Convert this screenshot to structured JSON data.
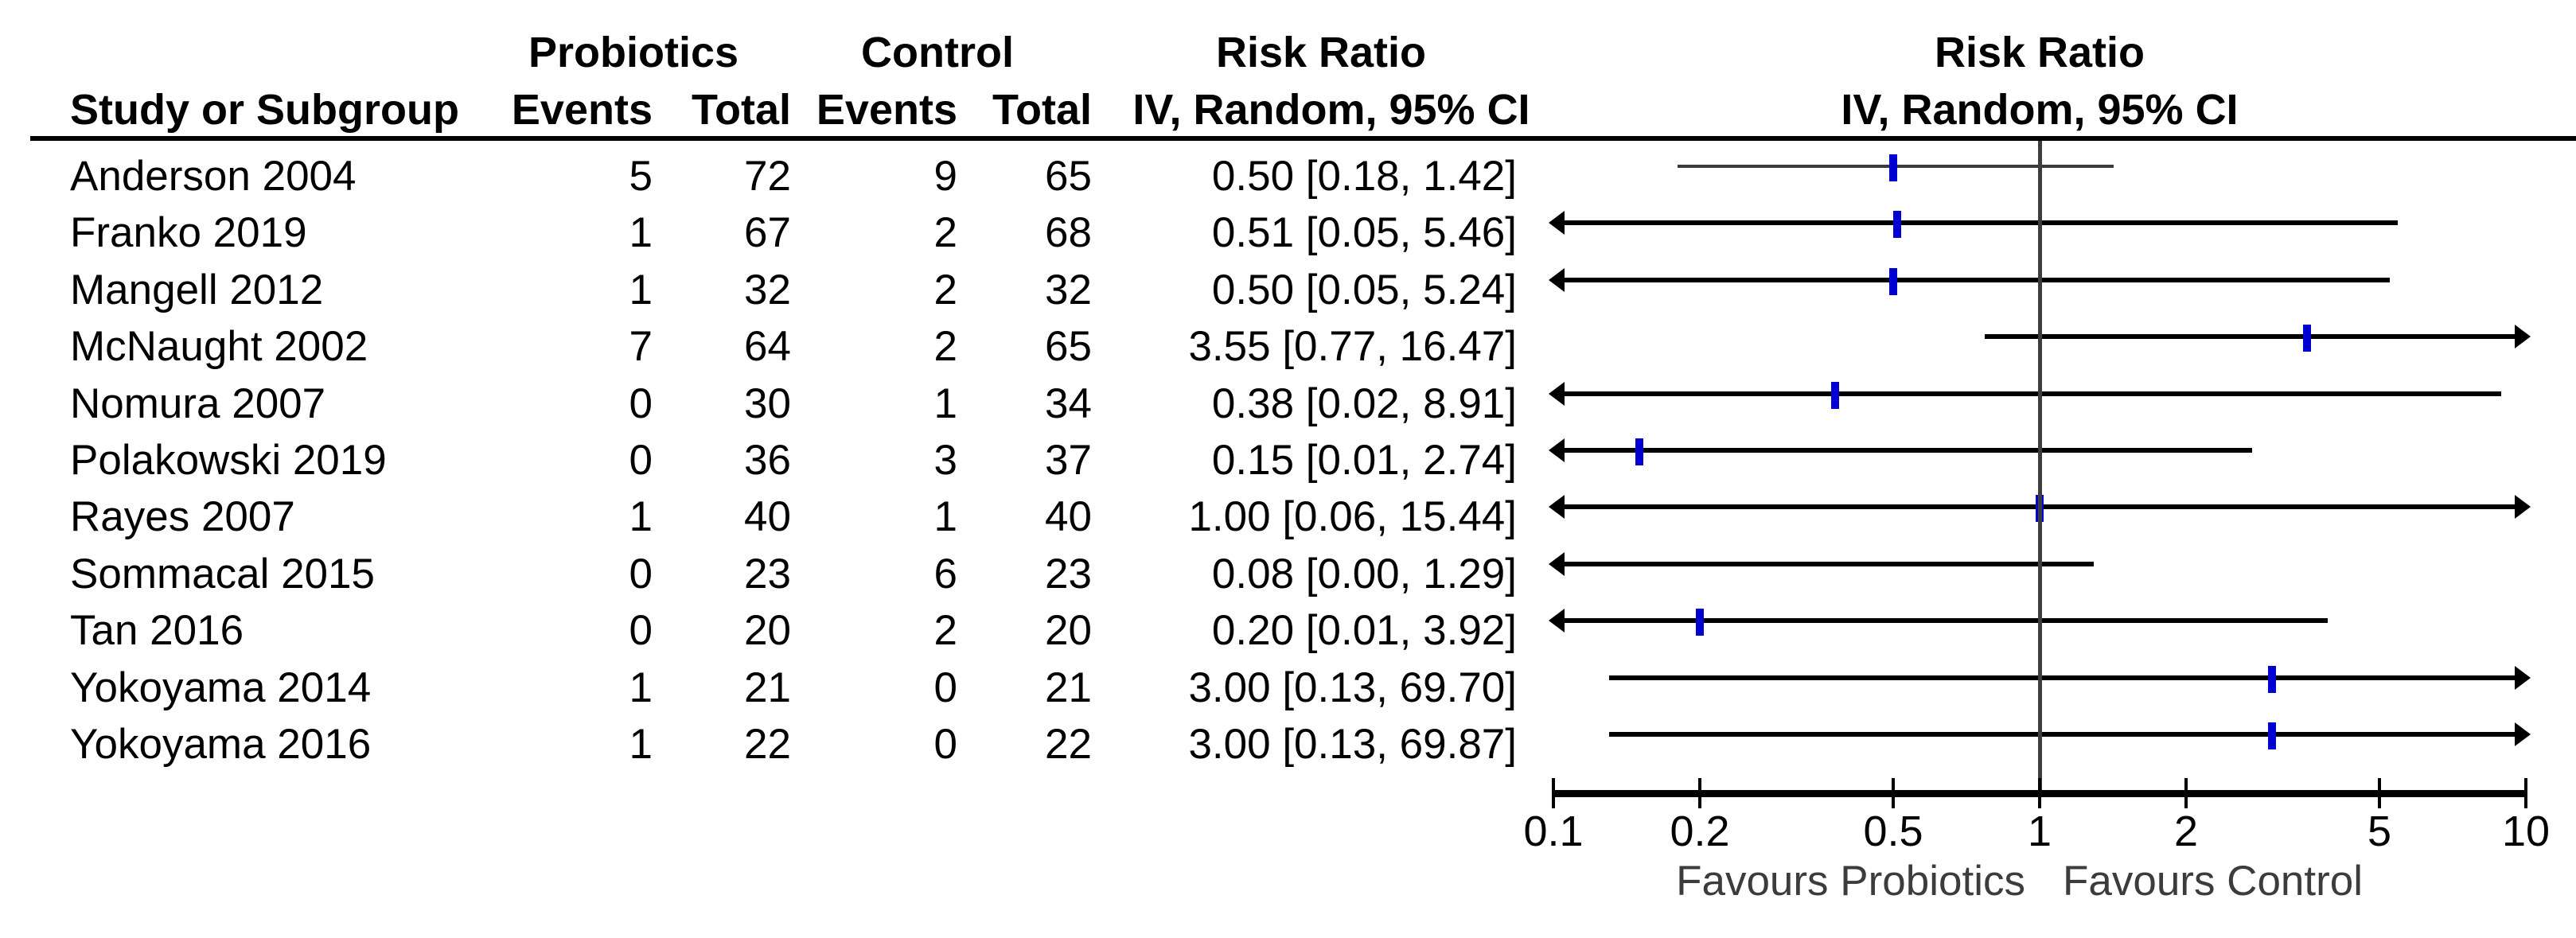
{
  "table": {
    "study_col_header": "Study or Subgroup",
    "group1": {
      "name": "Probiotics",
      "events": "Events",
      "total": "Total"
    },
    "group2": {
      "name": "Control",
      "events": "Events",
      "total": "Total"
    },
    "effect_col": {
      "line1": "Risk Ratio",
      "line2": "IV, Random, 95% CI"
    },
    "plot_col": {
      "line1": "Risk Ratio",
      "line2": "IV, Random, 95% CI"
    }
  },
  "chart_data": {
    "type": "scatter",
    "subtype": "forest-plot",
    "title": "Risk Ratio IV, Random, 95% CI",
    "x_scale": "log10",
    "xlim": [
      0.1,
      10
    ],
    "x_ticks": [
      0.1,
      0.2,
      0.5,
      1,
      2,
      5,
      10
    ],
    "x_tick_labels": [
      "0.1",
      "0.2",
      "0.5",
      "1",
      "2",
      "5",
      "10"
    ],
    "null_line_value": 1,
    "favours_left": "Favours Probiotics",
    "favours_right": "Favours Control",
    "studies": [
      {
        "name": "Anderson 2004",
        "g1_events": 5,
        "g1_total": 72,
        "g2_events": 9,
        "g2_total": 65,
        "rr": 0.5,
        "ci_low": 0.18,
        "ci_high": 1.42,
        "ci_label": "0.50 [0.18, 1.42]"
      },
      {
        "name": "Franko 2019",
        "g1_events": 1,
        "g1_total": 67,
        "g2_events": 2,
        "g2_total": 68,
        "rr": 0.51,
        "ci_low": 0.05,
        "ci_high": 5.46,
        "ci_label": "0.51 [0.05, 5.46]"
      },
      {
        "name": "Mangell 2012",
        "g1_events": 1,
        "g1_total": 32,
        "g2_events": 2,
        "g2_total": 32,
        "rr": 0.5,
        "ci_low": 0.05,
        "ci_high": 5.24,
        "ci_label": "0.50 [0.05, 5.24]"
      },
      {
        "name": "McNaught 2002",
        "g1_events": 7,
        "g1_total": 64,
        "g2_events": 2,
        "g2_total": 65,
        "rr": 3.55,
        "ci_low": 0.77,
        "ci_high": 16.47,
        "ci_label": "3.55 [0.77, 16.47]"
      },
      {
        "name": "Nomura 2007",
        "g1_events": 0,
        "g1_total": 30,
        "g2_events": 1,
        "g2_total": 34,
        "rr": 0.38,
        "ci_low": 0.02,
        "ci_high": 8.91,
        "ci_label": "0.38 [0.02, 8.91]"
      },
      {
        "name": "Polakowski 2019",
        "g1_events": 0,
        "g1_total": 36,
        "g2_events": 3,
        "g2_total": 37,
        "rr": 0.15,
        "ci_low": 0.01,
        "ci_high": 2.74,
        "ci_label": "0.15 [0.01, 2.74]"
      },
      {
        "name": "Rayes 2007",
        "g1_events": 1,
        "g1_total": 40,
        "g2_events": 1,
        "g2_total": 40,
        "rr": 1.0,
        "ci_low": 0.06,
        "ci_high": 15.44,
        "ci_label": "1.00 [0.06, 15.44]"
      },
      {
        "name": "Sommacal 2015",
        "g1_events": 0,
        "g1_total": 23,
        "g2_events": 6,
        "g2_total": 23,
        "rr": 0.08,
        "ci_low": 0.0,
        "ci_high": 1.29,
        "ci_label": "0.08 [0.00, 1.29]"
      },
      {
        "name": "Tan 2016",
        "g1_events": 0,
        "g1_total": 20,
        "g2_events": 2,
        "g2_total": 20,
        "rr": 0.2,
        "ci_low": 0.01,
        "ci_high": 3.92,
        "ci_label": "0.20 [0.01, 3.92]"
      },
      {
        "name": "Yokoyama 2014",
        "g1_events": 1,
        "g1_total": 21,
        "g2_events": 0,
        "g2_total": 21,
        "rr": 3.0,
        "ci_low": 0.13,
        "ci_high": 69.7,
        "ci_label": "3.00 [0.13, 69.70]"
      },
      {
        "name": "Yokoyama 2016",
        "g1_events": 1,
        "g1_total": 22,
        "g2_events": 0,
        "g2_total": 22,
        "rr": 3.0,
        "ci_low": 0.13,
        "ci_high": 69.87,
        "ci_label": "3.00 [0.13, 69.87]"
      }
    ]
  },
  "colors": {
    "marker": "#0000d0",
    "ci_line": "#000000",
    "first_row_ci_line": "#3a3a3a",
    "null_line": "#3d3d3d",
    "text": "#000000",
    "favours_text": "#3c3c3c"
  }
}
